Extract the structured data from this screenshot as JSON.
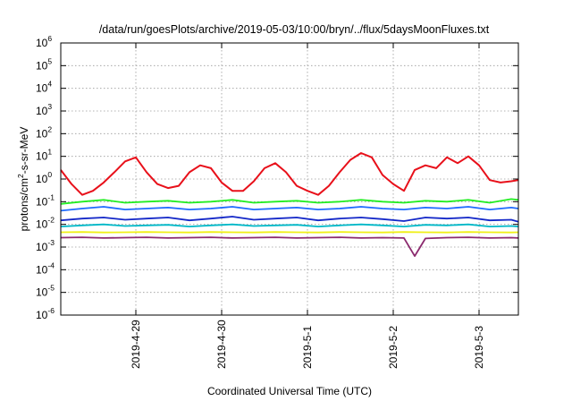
{
  "chart_data": {
    "type": "line",
    "title": "/data/run/goesPlots/archive/2019-05-03/10:00/bryn/../flux/5daysMoonFluxes.txt",
    "xlabel": "Coordinated Universal Time (UTC)",
    "ylabel_parts": {
      "a": "protons/cm",
      "sup": "2",
      "b": "-s-sr-MeV"
    },
    "y_scale": "log",
    "ylim": [
      1e-06,
      1000000.0
    ],
    "y_ticks": [
      {
        "value": 1e-06,
        "base": "10",
        "exp": "-6"
      },
      {
        "value": 1e-05,
        "base": "10",
        "exp": "-5"
      },
      {
        "value": 0.0001,
        "base": "10",
        "exp": "-4"
      },
      {
        "value": 0.001,
        "base": "10",
        "exp": "-3"
      },
      {
        "value": 0.01,
        "base": "10",
        "exp": "-2"
      },
      {
        "value": 0.1,
        "base": "10",
        "exp": "-1"
      },
      {
        "value": 1,
        "base": "10",
        "exp": "0"
      },
      {
        "value": 10,
        "base": "10",
        "exp": "1"
      },
      {
        "value": 100,
        "base": "10",
        "exp": "2"
      },
      {
        "value": 1000,
        "base": "10",
        "exp": "3"
      },
      {
        "value": 10000,
        "base": "10",
        "exp": "4"
      },
      {
        "value": 100000,
        "base": "10",
        "exp": "5"
      },
      {
        "value": 1000000,
        "base": "10",
        "exp": "6"
      }
    ],
    "xlim": [
      "2019-04-28 03:00",
      "2019-05-03 11:00"
    ],
    "x_ticks": [
      {
        "value": "2019-04-29 00:00",
        "label": "2019-4-29"
      },
      {
        "value": "2019-04-30 00:00",
        "label": "2019-4-30"
      },
      {
        "value": "2019-05-01 00:00",
        "label": "2019-5-1"
      },
      {
        "value": "2019-05-02 00:00",
        "label": "2019-5-2"
      },
      {
        "value": "2019-05-03 00:00",
        "label": "2019-5-3"
      }
    ],
    "grid": true,
    "legend": "none",
    "series": [
      {
        "color": "#e8101a",
        "x": [
          "2019-04-28 03:00",
          "2019-04-28 06:00",
          "2019-04-28 09:00",
          "2019-04-28 12:00",
          "2019-04-28 15:00",
          "2019-04-28 18:00",
          "2019-04-28 21:00",
          "2019-04-29 00:00",
          "2019-04-29 03:00",
          "2019-04-29 06:00",
          "2019-04-29 09:00",
          "2019-04-29 12:00",
          "2019-04-29 15:00",
          "2019-04-29 18:00",
          "2019-04-29 21:00",
          "2019-04-30 00:00",
          "2019-04-30 03:00",
          "2019-04-30 06:00",
          "2019-04-30 09:00",
          "2019-04-30 12:00",
          "2019-04-30 15:00",
          "2019-04-30 18:00",
          "2019-04-30 21:00",
          "2019-05-01 00:00",
          "2019-05-01 03:00",
          "2019-05-01 06:00",
          "2019-05-01 09:00",
          "2019-05-01 12:00",
          "2019-05-01 15:00",
          "2019-05-01 18:00",
          "2019-05-01 21:00",
          "2019-05-02 00:00",
          "2019-05-02 03:00",
          "2019-05-02 06:00",
          "2019-05-02 09:00",
          "2019-05-02 12:00",
          "2019-05-02 15:00",
          "2019-05-02 18:00",
          "2019-05-02 21:00",
          "2019-05-03 00:00",
          "2019-05-03 03:00",
          "2019-05-03 06:00",
          "2019-05-03 09:00",
          "2019-05-03 11:00"
        ],
        "y": [
          2.5,
          0.6,
          0.2,
          0.3,
          0.7,
          2,
          6,
          9,
          2,
          0.6,
          0.4,
          0.5,
          2,
          4,
          3,
          0.7,
          0.3,
          0.3,
          0.8,
          3,
          5,
          2,
          0.5,
          0.3,
          0.2,
          0.5,
          2,
          7,
          14,
          9,
          1.5,
          0.6,
          0.3,
          2.5,
          4,
          3,
          9,
          5,
          10,
          4,
          0.9,
          0.7,
          0.8,
          0.9
        ]
      },
      {
        "color": "#22ee22",
        "x": [
          "2019-04-28 03:00",
          "2019-04-28 09:00",
          "2019-04-28 15:00",
          "2019-04-28 21:00",
          "2019-04-29 03:00",
          "2019-04-29 09:00",
          "2019-04-29 15:00",
          "2019-04-29 21:00",
          "2019-04-30 03:00",
          "2019-04-30 09:00",
          "2019-04-30 15:00",
          "2019-04-30 21:00",
          "2019-05-01 03:00",
          "2019-05-01 09:00",
          "2019-05-01 15:00",
          "2019-05-01 21:00",
          "2019-05-02 03:00",
          "2019-05-02 09:00",
          "2019-05-02 15:00",
          "2019-05-02 21:00",
          "2019-05-03 03:00",
          "2019-05-03 09:00",
          "2019-05-03 11:00"
        ],
        "y": [
          0.08,
          0.1,
          0.12,
          0.09,
          0.1,
          0.11,
          0.09,
          0.1,
          0.12,
          0.09,
          0.1,
          0.11,
          0.09,
          0.1,
          0.12,
          0.1,
          0.09,
          0.11,
          0.1,
          0.12,
          0.09,
          0.13,
          0.12
        ]
      },
      {
        "color": "#1f6bff",
        "x": [
          "2019-04-28 03:00",
          "2019-04-28 09:00",
          "2019-04-28 15:00",
          "2019-04-28 21:00",
          "2019-04-29 03:00",
          "2019-04-29 09:00",
          "2019-04-29 15:00",
          "2019-04-29 21:00",
          "2019-04-30 03:00",
          "2019-04-30 09:00",
          "2019-04-30 15:00",
          "2019-04-30 21:00",
          "2019-05-01 03:00",
          "2019-05-01 09:00",
          "2019-05-01 15:00",
          "2019-05-01 21:00",
          "2019-05-02 03:00",
          "2019-05-02 09:00",
          "2019-05-02 15:00",
          "2019-05-02 21:00",
          "2019-05-03 03:00",
          "2019-05-03 09:00",
          "2019-05-03 11:00"
        ],
        "y": [
          0.04,
          0.05,
          0.06,
          0.045,
          0.05,
          0.055,
          0.045,
          0.05,
          0.06,
          0.045,
          0.05,
          0.055,
          0.045,
          0.05,
          0.06,
          0.05,
          0.045,
          0.055,
          0.05,
          0.06,
          0.045,
          0.055,
          0.05
        ]
      },
      {
        "color": "#1428c8",
        "x": [
          "2019-04-28 03:00",
          "2019-04-28 09:00",
          "2019-04-28 15:00",
          "2019-04-28 21:00",
          "2019-04-29 03:00",
          "2019-04-29 09:00",
          "2019-04-29 15:00",
          "2019-04-29 21:00",
          "2019-04-30 03:00",
          "2019-04-30 09:00",
          "2019-04-30 15:00",
          "2019-04-30 21:00",
          "2019-05-01 03:00",
          "2019-05-01 09:00",
          "2019-05-01 15:00",
          "2019-05-01 21:00",
          "2019-05-02 03:00",
          "2019-05-02 09:00",
          "2019-05-02 15:00",
          "2019-05-02 21:00",
          "2019-05-03 03:00",
          "2019-05-03 09:00",
          "2019-05-03 11:00"
        ],
        "y": [
          0.015,
          0.018,
          0.02,
          0.016,
          0.018,
          0.02,
          0.015,
          0.018,
          0.022,
          0.016,
          0.018,
          0.02,
          0.015,
          0.018,
          0.02,
          0.017,
          0.014,
          0.02,
          0.018,
          0.02,
          0.015,
          0.016,
          0.013
        ]
      },
      {
        "color": "#00b8c8",
        "x": [
          "2019-04-28 03:00",
          "2019-04-28 09:00",
          "2019-04-28 15:00",
          "2019-04-28 21:00",
          "2019-04-29 03:00",
          "2019-04-29 09:00",
          "2019-04-29 15:00",
          "2019-04-29 21:00",
          "2019-04-30 03:00",
          "2019-04-30 09:00",
          "2019-04-30 15:00",
          "2019-04-30 21:00",
          "2019-05-01 03:00",
          "2019-05-01 09:00",
          "2019-05-01 15:00",
          "2019-05-01 21:00",
          "2019-05-02 03:00",
          "2019-05-02 09:00",
          "2019-05-02 15:00",
          "2019-05-02 21:00",
          "2019-05-03 03:00",
          "2019-05-03 09:00",
          "2019-05-03 11:00"
        ],
        "y": [
          0.008,
          0.009,
          0.01,
          0.0085,
          0.009,
          0.0095,
          0.008,
          0.009,
          0.01,
          0.0085,
          0.009,
          0.0095,
          0.008,
          0.009,
          0.01,
          0.009,
          0.008,
          0.0095,
          0.009,
          0.01,
          0.008,
          0.0085,
          0.008
        ]
      },
      {
        "color": "#f0f018",
        "x": [
          "2019-04-28 03:00",
          "2019-04-28 09:00",
          "2019-04-28 15:00",
          "2019-04-28 21:00",
          "2019-04-29 03:00",
          "2019-04-29 09:00",
          "2019-04-29 15:00",
          "2019-04-29 21:00",
          "2019-04-30 03:00",
          "2019-04-30 09:00",
          "2019-04-30 15:00",
          "2019-04-30 21:00",
          "2019-05-01 03:00",
          "2019-05-01 09:00",
          "2019-05-01 15:00",
          "2019-05-01 21:00",
          "2019-05-02 03:00",
          "2019-05-02 09:00",
          "2019-05-02 15:00",
          "2019-05-02 21:00",
          "2019-05-03 03:00",
          "2019-05-03 09:00",
          "2019-05-03 11:00"
        ],
        "y": [
          0.0045,
          0.0046,
          0.0044,
          0.0045,
          0.0046,
          0.0045,
          0.0044,
          0.0046,
          0.0045,
          0.0044,
          0.0046,
          0.0045,
          0.0044,
          0.0046,
          0.0045,
          0.0044,
          0.0046,
          0.0045,
          0.0044,
          0.0046,
          0.0045,
          0.0044,
          0.0045
        ]
      },
      {
        "color": "#8b2a6e",
        "x": [
          "2019-04-28 03:00",
          "2019-04-28 09:00",
          "2019-04-28 15:00",
          "2019-04-28 21:00",
          "2019-04-29 03:00",
          "2019-04-29 09:00",
          "2019-04-29 15:00",
          "2019-04-29 21:00",
          "2019-04-30 03:00",
          "2019-04-30 09:00",
          "2019-04-30 15:00",
          "2019-04-30 21:00",
          "2019-05-01 03:00",
          "2019-05-01 09:00",
          "2019-05-01 15:00",
          "2019-05-01 21:00",
          "2019-05-02 03:00",
          "2019-05-02 06:00",
          "2019-05-02 09:00",
          "2019-05-02 15:00",
          "2019-05-02 21:00",
          "2019-05-03 03:00",
          "2019-05-03 09:00",
          "2019-05-03 11:00"
        ],
        "y": [
          0.0026,
          0.0027,
          0.0025,
          0.0026,
          0.0027,
          0.0025,
          0.0026,
          0.0027,
          0.0025,
          0.0026,
          0.0027,
          0.0025,
          0.0026,
          0.0027,
          0.0025,
          0.0026,
          0.0025,
          0.0004,
          0.0024,
          0.0026,
          0.0027,
          0.0025,
          0.0026,
          0.0025
        ]
      }
    ]
  }
}
